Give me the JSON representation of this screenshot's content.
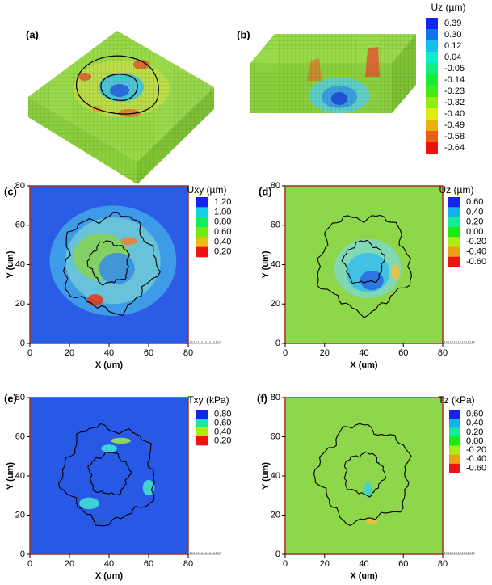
{
  "chart_data": [
    {
      "type": "surface3d",
      "label": "(a)"
    },
    {
      "type": "surface3d",
      "label": "(b)",
      "colorbar": {
        "title": "Uz (µm)",
        "ticks": [
          0.39,
          {
            "value": 0.3,
            "label": "0.30"
          },
          0.12,
          0.04,
          -0.05,
          -0.14,
          -0.23,
          -0.32,
          {
            "value": -0.4,
            "label": "-0.40"
          },
          -0.49,
          -0.58,
          -0.64
        ]
      }
    },
    {
      "type": "contour",
      "label": "(c)",
      "xlabel": "X (um)",
      "ylabel": "Y (um)",
      "xlim": [
        0,
        80
      ],
      "ylim": [
        0,
        80
      ],
      "xticks": [
        0,
        20,
        40,
        60,
        80
      ],
      "yticks": [
        0,
        20,
        40,
        60,
        80
      ],
      "color": "#2a5ce6",
      "colorbar": {
        "title": "Uxy (µm)",
        "ticks": [
          {
            "value": 1.2,
            "label": "1.20"
          },
          {
            "value": 1,
            "label": "1.00"
          },
          {
            "value": 0.8,
            "label": "0.80"
          },
          {
            "value": 0.6,
            "label": "0.60"
          },
          {
            "value": 0.4,
            "label": "0.40"
          },
          {
            "value": 0.2,
            "label": "0.20"
          }
        ]
      }
    },
    {
      "type": "contour",
      "label": "(d)",
      "xlabel": "X (um)",
      "ylabel": "Y (um)",
      "xlim": [
        0,
        80
      ],
      "ylim": [
        0,
        80
      ],
      "xticks": [
        0,
        20,
        40,
        60,
        80
      ],
      "yticks": [
        0,
        20,
        40,
        60,
        80
      ],
      "color": "#8ed64a",
      "colorbar": {
        "title": "Uz (µm)",
        "ticks": [
          {
            "value": 0.6,
            "label": "0.60"
          },
          {
            "value": 0.4,
            "label": "0.40"
          },
          {
            "value": 0.2,
            "label": "0.20"
          },
          {
            "value": 0,
            "label": "0.00"
          },
          {
            "value": -0.2,
            "label": "-0.20"
          },
          {
            "value": -0.4,
            "label": "-0.40"
          },
          {
            "value": -0.6,
            "label": "-0.60"
          }
        ]
      }
    },
    {
      "type": "contour",
      "label": "(e)",
      "xlabel": "X (um)",
      "ylabel": "Y (um)",
      "xlim": [
        0,
        80
      ],
      "ylim": [
        0,
        80
      ],
      "xticks": [
        0,
        20,
        40,
        60,
        80
      ],
      "yticks": [
        0,
        20,
        40,
        60,
        80
      ],
      "color": "#2858e6",
      "colorbar": {
        "title": "Txy (kPa)",
        "ticks": [
          {
            "value": 0.8,
            "label": "0.80"
          },
          {
            "value": 0.6,
            "label": "0.60"
          },
          {
            "value": 0.4,
            "label": "0.40"
          },
          {
            "value": 0.2,
            "label": "0.20"
          }
        ]
      }
    },
    {
      "type": "contour",
      "label": "(f)",
      "xlabel": "X (um)",
      "ylabel": "Y (um)",
      "xlim": [
        0,
        80
      ],
      "ylim": [
        0,
        80
      ],
      "xticks": [
        0,
        20,
        40,
        60,
        80
      ],
      "yticks": [
        0,
        20,
        40,
        60,
        80
      ],
      "color": "#8ed64a",
      "colorbar": {
        "title": "Tz (kPa)",
        "ticks": [
          {
            "value": 0.6,
            "label": "0.60"
          },
          {
            "value": 0.4,
            "label": "0.40"
          },
          {
            "value": 0.2,
            "label": "0.20"
          },
          {
            "value": 0,
            "label": "0.00"
          },
          {
            "value": -0.2,
            "label": "-0.20"
          },
          {
            "value": -0.4,
            "label": "-0.40"
          },
          {
            "value": -0.6,
            "label": "-0.60"
          }
        ]
      }
    }
  ]
}
